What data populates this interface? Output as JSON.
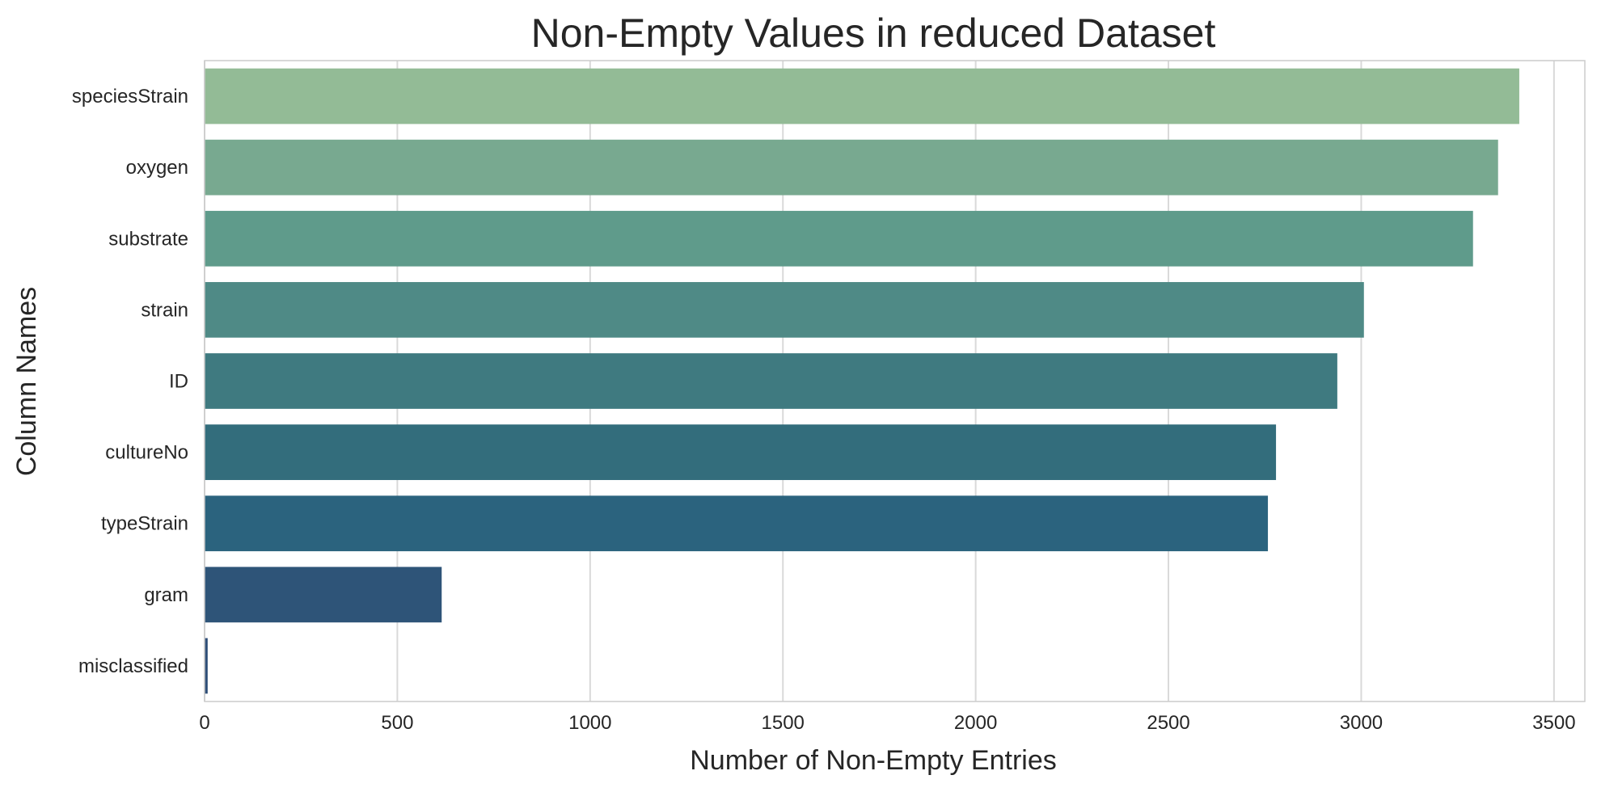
{
  "chart_data": {
    "type": "bar",
    "orientation": "horizontal",
    "title": "Non-Empty Values in reduced Dataset",
    "xlabel": "Number of Non-Empty Entries",
    "ylabel": "Column Names",
    "categories": [
      "speciesStrain",
      "oxygen",
      "substrate",
      "strain",
      "ID",
      "cultureNo",
      "typeStrain",
      "gram",
      "misclassified"
    ],
    "values": [
      3410,
      3355,
      3290,
      3007,
      2938,
      2779,
      2758,
      615,
      8
    ],
    "colors": [
      "#93bb96",
      "#78a990",
      "#5f9b8b",
      "#4f8a86",
      "#3f7a80",
      "#336d7c",
      "#2b637e",
      "#2e5478",
      "#2e4d77"
    ],
    "xlim": [
      0,
      3580
    ],
    "xticks": [
      0,
      500,
      1000,
      1500,
      2000,
      2500,
      3000,
      3500
    ],
    "xtick_labels": [
      "0",
      "500",
      "1000",
      "1500",
      "2000",
      "2500",
      "3000",
      "3500"
    ],
    "grid": "vertical",
    "legend": "none"
  }
}
